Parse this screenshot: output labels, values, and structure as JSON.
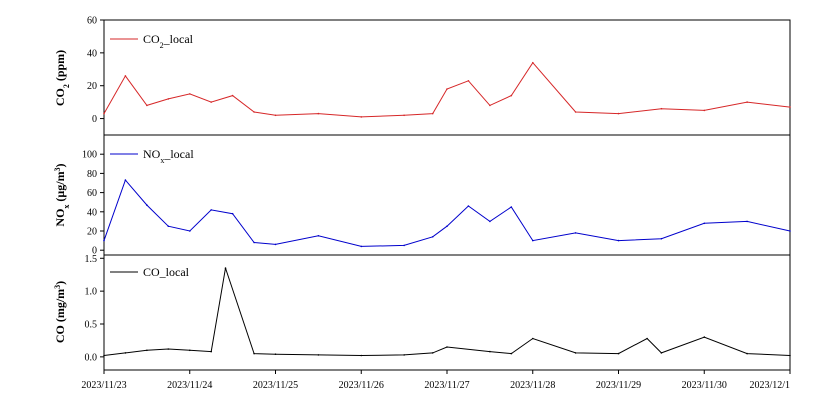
{
  "chart_data": [
    {
      "type": "line",
      "id": "co2",
      "ylabel_main": "CO",
      "ylabel_sub": "2",
      "ylabel_unit": " (ppm)",
      "legend_main": "CO",
      "legend_sub": "2",
      "legend_rest": "_local",
      "legend_position": "top-left",
      "color": "#d62728",
      "ylim": [
        -10,
        60
      ],
      "yticks": [
        0,
        20,
        40,
        60
      ],
      "yticks_text": [
        "0",
        "20",
        "40",
        "60"
      ],
      "x": [
        "2023-11-23",
        "2023-11-23 06:00",
        "2023-11-23 12:00",
        "2023-11-23 18:00",
        "2023-11-24",
        "2023-11-24 06:00",
        "2023-11-24 12:00",
        "2023-11-24 18:00",
        "2023-11-25",
        "2023-11-25 12:00",
        "2023-11-26",
        "2023-11-26 12:00",
        "2023-11-26 20:00",
        "2023-11-27",
        "2023-11-27 06:00",
        "2023-11-27 12:00",
        "2023-11-27 18:00",
        "2023-11-28",
        "2023-11-28 12:00",
        "2023-11-29",
        "2023-11-29 12:00",
        "2023-11-30",
        "2023-11-30 12:00",
        "2023-12-01"
      ],
      "values": [
        3,
        26,
        8,
        12,
        15,
        10,
        14,
        4,
        2,
        3,
        1,
        2,
        3,
        18,
        23,
        8,
        14,
        34,
        4,
        3,
        6,
        5,
        10,
        7
      ]
    },
    {
      "type": "line",
      "id": "nox",
      "ylabel_main": "NO",
      "ylabel_sub": "x",
      "ylabel_unit": " (μg/m",
      "ylabel_sup": "3",
      "ylabel_close": ")",
      "legend_main": "NO",
      "legend_sub": "x",
      "legend_rest": "_local",
      "legend_position": "top-left",
      "color": "#0000cc",
      "ylim": [
        -5,
        120
      ],
      "yticks": [
        0,
        20,
        40,
        60,
        80,
        100
      ],
      "yticks_text": [
        "0",
        "20",
        "40",
        "60",
        "80",
        "100"
      ],
      "x": [
        "2023-11-23",
        "2023-11-23 06:00",
        "2023-11-23 12:00",
        "2023-11-23 18:00",
        "2023-11-24",
        "2023-11-24 06:00",
        "2023-11-24 12:00",
        "2023-11-24 18:00",
        "2023-11-25",
        "2023-11-25 12:00",
        "2023-11-26",
        "2023-11-26 12:00",
        "2023-11-26 20:00",
        "2023-11-27",
        "2023-11-27 06:00",
        "2023-11-27 12:00",
        "2023-11-27 18:00",
        "2023-11-28",
        "2023-11-28 12:00",
        "2023-11-29",
        "2023-11-29 12:00",
        "2023-11-30",
        "2023-11-30 12:00",
        "2023-12-01"
      ],
      "values": [
        10,
        73,
        47,
        25,
        20,
        42,
        38,
        8,
        6,
        15,
        4,
        5,
        14,
        25,
        46,
        30,
        45,
        10,
        18,
        10,
        12,
        28,
        30,
        20
      ]
    },
    {
      "type": "line",
      "id": "co",
      "ylabel_main": "CO",
      "ylabel_unit": " (mg/m",
      "ylabel_sup": "3",
      "ylabel_close": ")",
      "legend_main": "CO",
      "legend_rest": "_local",
      "legend_position": "top-left",
      "color": "#000000",
      "ylim": [
        -0.2,
        1.55
      ],
      "yticks": [
        0.0,
        0.5,
        1.0,
        1.5
      ],
      "yticks_text": [
        "0.0",
        "0.5",
        "1.0",
        "1.5"
      ],
      "x": [
        "2023-11-23",
        "2023-11-23 06:00",
        "2023-11-23 12:00",
        "2023-11-23 18:00",
        "2023-11-24",
        "2023-11-24 06:00",
        "2023-11-24 10:00",
        "2023-11-24 18:00",
        "2023-11-25",
        "2023-11-25 12:00",
        "2023-11-26",
        "2023-11-26 12:00",
        "2023-11-26 20:00",
        "2023-11-27",
        "2023-11-27 12:00",
        "2023-11-27 18:00",
        "2023-11-28",
        "2023-11-28 12:00",
        "2023-11-29",
        "2023-11-29 08:00",
        "2023-11-29 12:00",
        "2023-11-30",
        "2023-11-30 12:00",
        "2023-12-01"
      ],
      "values": [
        0.02,
        0.06,
        0.1,
        0.12,
        0.1,
        0.08,
        1.35,
        0.05,
        0.04,
        0.03,
        0.02,
        0.03,
        0.06,
        0.15,
        0.08,
        0.05,
        0.28,
        0.06,
        0.05,
        0.28,
        0.06,
        0.3,
        0.05,
        0.02
      ]
    }
  ],
  "x_axis": {
    "ticks": [
      "2023/11/23",
      "2023/11/24",
      "2023/11/25",
      "2023/11/26",
      "2023/11/27",
      "2023/11/28",
      "2023/11/29",
      "2023/11/30",
      "2023/12/1"
    ]
  }
}
